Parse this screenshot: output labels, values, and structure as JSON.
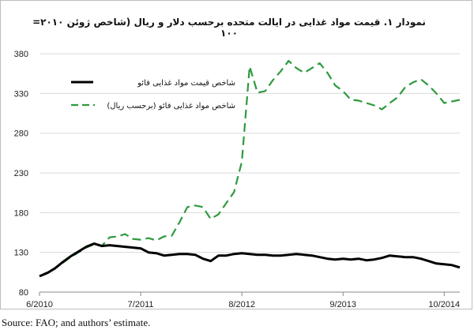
{
  "chart_data": {
    "type": "line",
    "title": "نمودار ۱. قیمت مواد غذایی در ایالت متحده برحسب دلار و ریال (شاخص ژوئن ۲۰۱۰= ۱۰۰",
    "xlabel": "",
    "ylabel": "",
    "ylim": [
      80,
      390
    ],
    "y_ticks": [
      "80",
      "130",
      "180",
      "230",
      "280",
      "330",
      "380"
    ],
    "x_tick_labels": [
      "6/2010",
      "7/2011",
      "8/2012",
      "9/2013",
      "10/2014"
    ],
    "x_tick_dates": [
      "2010-06",
      "2011-07",
      "2012-08",
      "2013-09",
      "2014-10"
    ],
    "x": [
      "2010-06",
      "2010-07",
      "2010-08",
      "2010-09",
      "2010-10",
      "2010-11",
      "2010-12",
      "2011-01",
      "2011-02",
      "2011-03",
      "2011-04",
      "2011-05",
      "2011-06",
      "2011-07",
      "2011-08",
      "2011-09",
      "2011-10",
      "2011-11",
      "2011-12",
      "2012-01",
      "2012-02",
      "2012-03",
      "2012-04",
      "2012-05",
      "2012-06",
      "2012-07",
      "2012-08",
      "2012-09",
      "2012-10",
      "2012-11",
      "2012-12",
      "2013-01",
      "2013-02",
      "2013-03",
      "2013-04",
      "2013-05",
      "2013-06",
      "2013-07",
      "2013-08",
      "2013-09",
      "2013-10",
      "2013-11",
      "2013-12",
      "2014-01",
      "2014-02",
      "2014-03",
      "2014-04",
      "2014-05",
      "2014-06",
      "2014-07",
      "2014-08",
      "2014-09",
      "2014-10",
      "2014-11",
      "2014-12"
    ],
    "series": [
      {
        "name": "شاخص قیمت مواد غذایی فائو",
        "color": "#000000",
        "style": "solid",
        "values": [
          100,
          104,
          110,
          118,
          125,
          131,
          137,
          141,
          138,
          139,
          138,
          137,
          136,
          135,
          130,
          129,
          126,
          127,
          128,
          128,
          127,
          122,
          119,
          126,
          126,
          128,
          129,
          128,
          127,
          127,
          126,
          126,
          127,
          128,
          127,
          126,
          124,
          122,
          121,
          122,
          121,
          122,
          120,
          121,
          123,
          126,
          125,
          124,
          124,
          122,
          119,
          116,
          115,
          114,
          111
        ]
      },
      {
        "name": "شاخص مواد غذایی فائو (برحسب ریال)",
        "color": "#2e9a3e",
        "style": "dashed",
        "values": [
          100,
          105,
          110,
          117,
          124,
          130,
          136,
          140,
          138,
          149,
          150,
          153,
          147,
          146,
          148,
          145,
          150,
          151,
          168,
          187,
          189,
          187,
          172,
          178,
          192,
          206,
          244,
          364,
          331,
          333,
          347,
          358,
          371,
          362,
          356,
          362,
          368,
          356,
          340,
          333,
          322,
          321,
          318,
          315,
          310,
          318,
          325,
          338,
          344,
          348,
          340,
          330,
          318,
          320,
          322
        ]
      }
    ],
    "legend_position": "top-left",
    "grid": "horizontal"
  },
  "source_note": "Source: FAO; and authors’ estimate."
}
